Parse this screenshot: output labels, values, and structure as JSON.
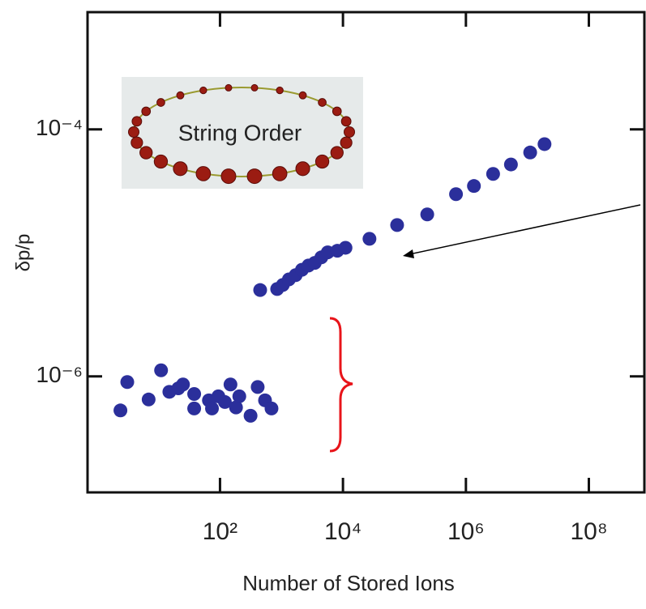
{
  "chart_data": {
    "type": "scatter",
    "xlabel": "Number of Stored Ions",
    "ylabel": "δp/p",
    "annotation": "String Order",
    "xscale": "log",
    "yscale": "log",
    "xlim": [
      0.7,
      800000000
    ],
    "ylim": [
      1.15e-07,
      0.00089
    ],
    "xticks": [
      {
        "value": 100,
        "label": "10²"
      },
      {
        "value": 10000,
        "label": "10⁴"
      },
      {
        "value": 1000000,
        "label": "10⁶"
      },
      {
        "value": 100000000,
        "label": "10⁸"
      }
    ],
    "yticks": [
      {
        "value": 1e-06,
        "label": "10⁻⁶"
      },
      {
        "value": 0.0001,
        "label": "10⁻⁴"
      }
    ],
    "series": [
      {
        "color": "#2b2f9b",
        "x": [
          2.4,
          3.1,
          6.9,
          11,
          15,
          21,
          25,
          38,
          38,
          66,
          74,
          94,
          120,
          148,
          182,
          206,
          314,
          410,
          540,
          688,
          450,
          850,
          1050,
          1320,
          1700,
          2150,
          2750,
          3480,
          4450,
          5650,
          8100,
          11000,
          27000,
          76000,
          235000,
          690000,
          1350000,
          2770000,
          5400000,
          11100000,
          19000000
        ],
        "values": [
          5.3e-07,
          9e-07,
          6.5e-07,
          1.12e-06,
          7.5e-07,
          8e-07,
          8.6e-07,
          7.2e-07,
          5.5e-07,
          6.4e-07,
          5.5e-07,
          6.9e-07,
          6.2e-07,
          8.6e-07,
          5.6e-07,
          6.9e-07,
          4.8e-07,
          8.2e-07,
          6.4e-07,
          5.5e-07,
          5e-06,
          5.1e-06,
          5.5e-06,
          6.1e-06,
          6.6e-06,
          7.3e-06,
          7.9e-06,
          8.3e-06,
          9.2e-06,
          1.01e-05,
          1.04e-05,
          1.1e-05,
          1.3e-05,
          1.68e-05,
          2.05e-05,
          2.99e-05,
          3.48e-05,
          4.36e-05,
          5.2e-05,
          6.5e-05,
          7.6e-05
        ]
      }
    ]
  }
}
